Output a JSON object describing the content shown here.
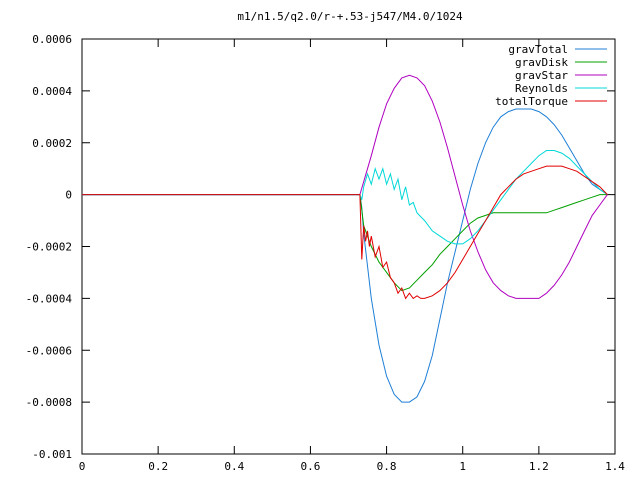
{
  "chart_data": {
    "type": "line",
    "title": "m1/n1.5/q2.0/r-+.53-j547/M4.0/1024",
    "xlabel": "",
    "ylabel": "",
    "xlim": [
      0,
      1.4
    ],
    "ylim": [
      -0.001,
      0.0006
    ],
    "x_ticks": [
      "0",
      "0.2",
      "0.4",
      "0.6",
      "0.8",
      "1",
      "1.2",
      "1.4"
    ],
    "y_ticks": [
      "0.0006",
      "0.0004",
      "0.0002",
      "0",
      "-0.0002",
      "-0.0004",
      "-0.0006",
      "-0.0008",
      "-0.001"
    ],
    "grid": false,
    "legend_position": "top-right",
    "series": [
      {
        "name": "gravTotal",
        "color": "#1f7fd6",
        "x": [
          0,
          0.73,
          0.735,
          0.74,
          0.76,
          0.78,
          0.8,
          0.82,
          0.84,
          0.86,
          0.88,
          0.9,
          0.92,
          0.94,
          0.96,
          0.98,
          1.0,
          1.02,
          1.04,
          1.06,
          1.08,
          1.1,
          1.12,
          1.14,
          1.16,
          1.18,
          1.2,
          1.22,
          1.24,
          1.26,
          1.28,
          1.3,
          1.32,
          1.34,
          1.36,
          1.38
        ],
        "y": [
          0,
          0,
          -5e-05,
          -0.00015,
          -0.0004,
          -0.00058,
          -0.0007,
          -0.00077,
          -0.0008,
          -0.0008,
          -0.00078,
          -0.00072,
          -0.00062,
          -0.00048,
          -0.00034,
          -0.00022,
          -0.0001,
          2e-05,
          0.00012,
          0.0002,
          0.00026,
          0.0003,
          0.00032,
          0.00033,
          0.00033,
          0.00033,
          0.00032,
          0.0003,
          0.00027,
          0.00023,
          0.00018,
          0.00013,
          8e-05,
          4e-05,
          2e-05,
          0
        ]
      },
      {
        "name": "gravDisk",
        "color": "#00a000",
        "x": [
          0,
          0.73,
          0.74,
          0.76,
          0.78,
          0.8,
          0.82,
          0.84,
          0.86,
          0.88,
          0.9,
          0.92,
          0.94,
          0.96,
          0.98,
          1.0,
          1.02,
          1.04,
          1.06,
          1.08,
          1.1,
          1.12,
          1.14,
          1.16,
          1.18,
          1.2,
          1.22,
          1.24,
          1.26,
          1.28,
          1.3,
          1.32,
          1.34,
          1.36,
          1.38
        ],
        "y": [
          0,
          0,
          -0.00012,
          -0.0002,
          -0.00026,
          -0.0003,
          -0.00034,
          -0.00037,
          -0.00036,
          -0.00033,
          -0.0003,
          -0.00027,
          -0.00023,
          -0.0002,
          -0.00017,
          -0.00014,
          -0.00011,
          -9e-05,
          -8e-05,
          -7e-05,
          -7e-05,
          -7e-05,
          -7e-05,
          -7e-05,
          -7e-05,
          -7e-05,
          -7e-05,
          -6e-05,
          -5e-05,
          -4e-05,
          -3e-05,
          -2e-05,
          -1e-05,
          0,
          0
        ]
      },
      {
        "name": "gravStar",
        "color": "#b000c0",
        "x": [
          0,
          0.73,
          0.74,
          0.76,
          0.78,
          0.8,
          0.82,
          0.84,
          0.86,
          0.88,
          0.9,
          0.92,
          0.94,
          0.96,
          0.98,
          1.0,
          1.02,
          1.04,
          1.06,
          1.08,
          1.1,
          1.12,
          1.14,
          1.16,
          1.18,
          1.2,
          1.22,
          1.24,
          1.26,
          1.28,
          1.3,
          1.32,
          1.34,
          1.36,
          1.38
        ],
        "y": [
          0,
          0,
          5e-05,
          0.00015,
          0.00026,
          0.00035,
          0.00041,
          0.00045,
          0.00046,
          0.00045,
          0.00042,
          0.00036,
          0.00028,
          0.00018,
          7e-05,
          -4e-05,
          -0.00014,
          -0.00022,
          -0.00029,
          -0.00034,
          -0.00037,
          -0.00039,
          -0.0004,
          -0.0004,
          -0.0004,
          -0.0004,
          -0.00038,
          -0.00035,
          -0.00031,
          -0.00026,
          -0.0002,
          -0.00014,
          -8e-05,
          -4e-05,
          0
        ]
      },
      {
        "name": "Reynolds",
        "color": "#00d8d8",
        "x": [
          0,
          0.73,
          0.735,
          0.74,
          0.75,
          0.76,
          0.77,
          0.78,
          0.79,
          0.8,
          0.81,
          0.82,
          0.83,
          0.84,
          0.85,
          0.86,
          0.87,
          0.88,
          0.9,
          0.92,
          0.94,
          0.96,
          0.98,
          1.0,
          1.02,
          1.04,
          1.06,
          1.08,
          1.1,
          1.12,
          1.14,
          1.16,
          1.18,
          1.2,
          1.22,
          1.24,
          1.26,
          1.28,
          1.3,
          1.32,
          1.34,
          1.36,
          1.38
        ],
        "y": [
          0,
          0,
          -2e-05,
          3e-05,
          8e-05,
          4e-05,
          0.0001,
          6e-05,
          0.0001,
          4e-05,
          8e-05,
          2e-05,
          6e-05,
          -2e-05,
          3e-05,
          -4e-05,
          -3e-05,
          -7e-05,
          -0.0001,
          -0.00014,
          -0.00016,
          -0.00018,
          -0.00019,
          -0.00019,
          -0.00017,
          -0.00014,
          -0.0001,
          -6e-05,
          -2e-05,
          2e-05,
          6e-05,
          9e-05,
          0.00012,
          0.00015,
          0.00017,
          0.00017,
          0.00016,
          0.00014,
          0.00011,
          8e-05,
          5e-05,
          2e-05,
          0
        ]
      },
      {
        "name": "totalTorque",
        "color": "#e00000",
        "x": [
          0,
          0.73,
          0.735,
          0.74,
          0.745,
          0.75,
          0.755,
          0.76,
          0.77,
          0.78,
          0.79,
          0.8,
          0.81,
          0.82,
          0.83,
          0.84,
          0.85,
          0.86,
          0.87,
          0.88,
          0.89,
          0.9,
          0.92,
          0.94,
          0.96,
          0.98,
          1.0,
          1.02,
          1.04,
          1.06,
          1.08,
          1.1,
          1.12,
          1.14,
          1.16,
          1.18,
          1.2,
          1.22,
          1.24,
          1.26,
          1.28,
          1.3,
          1.32,
          1.34,
          1.36,
          1.38
        ],
        "y": [
          0,
          0,
          -0.00025,
          -0.00012,
          -0.00018,
          -0.00014,
          -0.0002,
          -0.00016,
          -0.00024,
          -0.0002,
          -0.00028,
          -0.00026,
          -0.00032,
          -0.00034,
          -0.00038,
          -0.00036,
          -0.0004,
          -0.00038,
          -0.0004,
          -0.00039,
          -0.0004,
          -0.0004,
          -0.00039,
          -0.00037,
          -0.00034,
          -0.0003,
          -0.00025,
          -0.0002,
          -0.00015,
          -0.0001,
          -5e-05,
          0,
          3e-05,
          6e-05,
          8e-05,
          9e-05,
          0.0001,
          0.00011,
          0.00011,
          0.00011,
          0.0001,
          9e-05,
          7e-05,
          5e-05,
          3e-05,
          0
        ]
      }
    ]
  }
}
